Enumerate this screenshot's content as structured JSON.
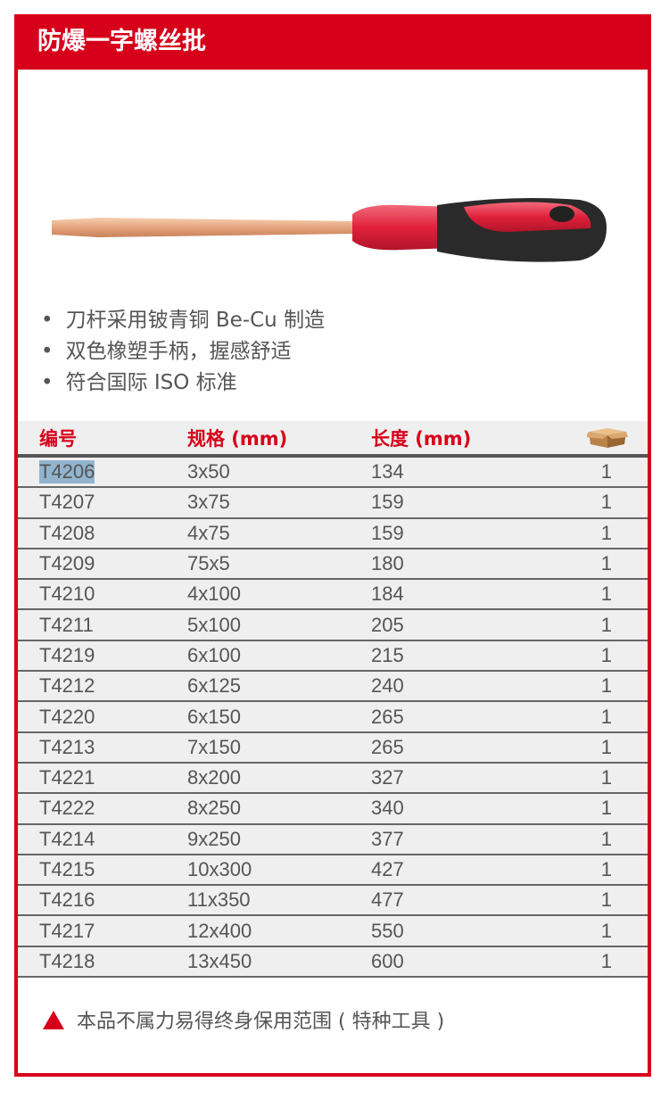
{
  "title": "防爆一字螺丝批",
  "features": [
    "刀杆采用铍青铜 Be-Cu 制造",
    "双色橡塑手柄，握感舒适",
    "符合国际 ISO 标准"
  ],
  "table": {
    "headers": [
      "编号",
      "规格 (mm)",
      "长度 (mm)"
    ],
    "qty_icon": "box-icon",
    "rows": [
      [
        "T4206",
        "3x50",
        "134",
        "1"
      ],
      [
        "T4207",
        "3x75",
        "159",
        "1"
      ],
      [
        "T4208",
        "4x75",
        "159",
        "1"
      ],
      [
        "T4209",
        "75x5",
        "180",
        "1"
      ],
      [
        "T4210",
        "4x100",
        "184",
        "1"
      ],
      [
        "T4211",
        "5x100",
        "205",
        "1"
      ],
      [
        "T4219",
        "6x100",
        "215",
        "1"
      ],
      [
        "T4212",
        "6x125",
        "240",
        "1"
      ],
      [
        "T4220",
        "6x150",
        "265",
        "1"
      ],
      [
        "T4213",
        "7x150",
        "265",
        "1"
      ],
      [
        "T4221",
        "8x200",
        "327",
        "1"
      ],
      [
        "T4222",
        "8x250",
        "340",
        "1"
      ],
      [
        "T4214",
        "9x250",
        "377",
        "1"
      ],
      [
        "T4215",
        "10x300",
        "427",
        "1"
      ],
      [
        "T4216",
        "11x350",
        "477",
        "1"
      ],
      [
        "T4217",
        "12x400",
        "550",
        "1"
      ],
      [
        "T4218",
        "13x450",
        "600",
        "1"
      ]
    ]
  },
  "note": "本品不属力易得终身保用范围 ( 特种工具 )",
  "colors": {
    "brand": "#d7001a",
    "selection": "#92b4cd"
  }
}
